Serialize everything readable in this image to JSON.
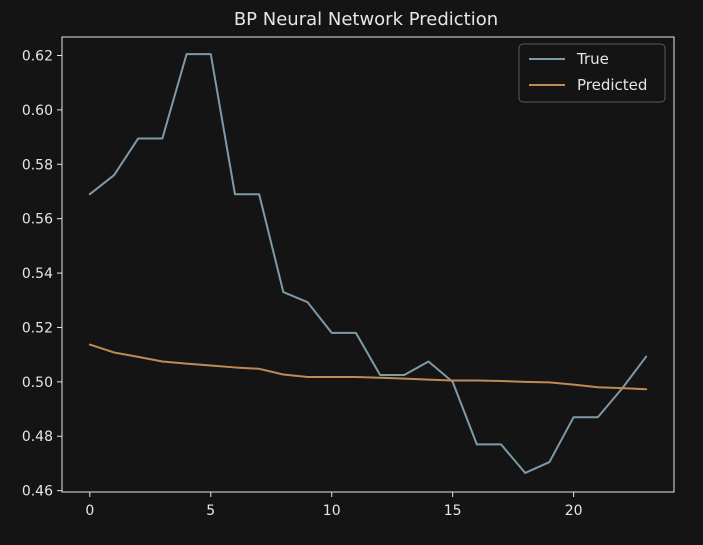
{
  "chart_data": {
    "type": "line",
    "title": "BP Neural Network Prediction",
    "xlabel": "",
    "ylabel": "",
    "x": [
      0,
      1,
      2,
      3,
      4,
      5,
      6,
      7,
      8,
      9,
      10,
      11,
      12,
      13,
      14,
      15,
      16,
      17,
      18,
      19,
      20,
      21,
      22,
      23
    ],
    "xlim": [
      -1.15,
      24.15
    ],
    "ylim": [
      0.4595,
      0.6268
    ],
    "xticks": [
      0,
      5,
      10,
      15,
      20
    ],
    "yticks": [
      0.46,
      0.48,
      0.5,
      0.52,
      0.54,
      0.56,
      0.58,
      0.6,
      0.62
    ],
    "ytick_labels": [
      "0.46",
      "0.48",
      "0.50",
      "0.52",
      "0.54",
      "0.56",
      "0.58",
      "0.60",
      "0.62"
    ],
    "grid": false,
    "legend_position": "top-right",
    "series": [
      {
        "name": "True",
        "color": "#7e9aa8",
        "values": [
          0.569,
          0.576,
          0.5895,
          0.5895,
          0.6205,
          0.6205,
          0.569,
          0.569,
          0.533,
          0.5293,
          0.518,
          0.518,
          0.5025,
          0.5025,
          0.5075,
          0.5,
          0.477,
          0.477,
          0.4665,
          0.4705,
          0.487,
          0.487,
          0.4975,
          0.5093
        ]
      },
      {
        "name": "Predicted",
        "color": "#c08a55",
        "values": [
          0.5137,
          0.5108,
          0.5092,
          0.5075,
          0.5067,
          0.506,
          0.5053,
          0.5048,
          0.5027,
          0.5018,
          0.5018,
          0.5018,
          0.5015,
          0.5012,
          0.5008,
          0.5005,
          0.5005,
          0.5003,
          0.5,
          0.4998,
          0.499,
          0.498,
          0.4977,
          0.4973
        ]
      }
    ]
  },
  "colors": {
    "background": "#141414",
    "axes": "#e6e6e6",
    "text": "#e6e6e6"
  }
}
